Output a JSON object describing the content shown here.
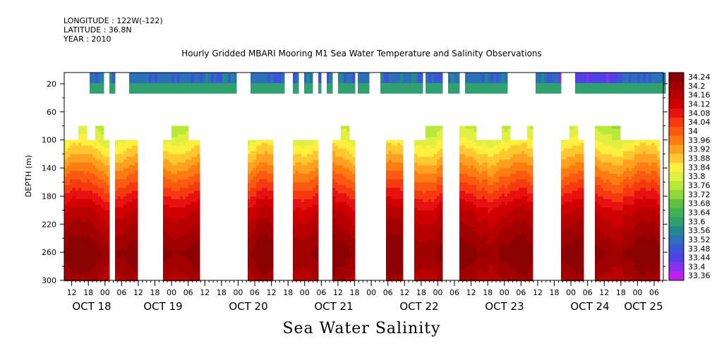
{
  "header": {
    "longitude": "LONGITUDE : 122W(-122)",
    "latitude": "LATITUDE : 36.8N",
    "year": "YEAR : 2010"
  },
  "chart_data": {
    "type": "heatmap",
    "title": "Hourly Gridded MBARI Mooring M1 Sea Water Temperature and Salinity Observations",
    "caption": "Sea Water Salinity",
    "ylabel": "DEPTH (m)",
    "y_ticks": [
      20,
      60,
      100,
      140,
      180,
      220,
      260,
      300
    ],
    "ylim": [
      300,
      4
    ],
    "x_hour_ticks": [
      "12",
      "18",
      "00",
      "06",
      "12",
      "18",
      "00",
      "06",
      "12",
      "18",
      "00",
      "06",
      "12",
      "18",
      "00",
      "06",
      "12",
      "18",
      "00",
      "06",
      "12",
      "18",
      "00",
      "06",
      "12",
      "18",
      "00",
      "06",
      "12",
      "18",
      "00",
      "06",
      "12",
      "18",
      "00",
      "06"
    ],
    "x_dates": [
      "OCT 18",
      "OCT 19",
      "OCT 20",
      "OCT 21",
      "OCT 22",
      "OCT 23",
      "OCT 24",
      "OCT 25"
    ],
    "colorbar_labels": [
      "34.24",
      "34.2",
      "34.16",
      "34.12",
      "34.08",
      "34.04",
      "34",
      "33.96",
      "33.92",
      "33.88",
      "33.84",
      "33.8",
      "33.76",
      "33.72",
      "33.68",
      "33.64",
      "33.6",
      "33.56",
      "33.52",
      "33.48",
      "33.44",
      "33.4",
      "33.36"
    ],
    "colorbar_colors": [
      "#8b0000",
      "#a00000",
      "#b80000",
      "#d00000",
      "#e81010",
      "#f53a10",
      "#fa5a10",
      "#fd7c12",
      "#ffa020",
      "#ffc830",
      "#fff040",
      "#e0f040",
      "#b8e838",
      "#90d838",
      "#60c040",
      "#40b050",
      "#30a070",
      "#208a90",
      "#2a70b8",
      "#3a55d8",
      "#5040e8",
      "#8830f0",
      "#c020f0"
    ],
    "surface_band": {
      "depth_range_m": [
        4,
        34
      ],
      "salinity_range": [
        33.4,
        33.62
      ]
    },
    "deep_profile": {
      "depth_range_m": [
        80,
        300
      ],
      "salinity_at_100m": 33.82,
      "salinity_at_200m": 34.12,
      "salinity_at_260m": 34.22
    }
  }
}
